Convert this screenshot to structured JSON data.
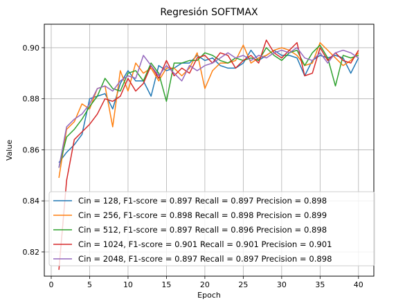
{
  "chart_data": {
    "type": "line",
    "title": "Regresión SOFTMAX",
    "xlabel": "Epoch",
    "ylabel": "Value",
    "xlim": [
      -0.9,
      42.0
    ],
    "ylim": [
      0.8105,
      0.9092
    ],
    "xticks": [
      0,
      5,
      10,
      15,
      20,
      25,
      30,
      35,
      40
    ],
    "yticks": [
      0.82,
      0.84,
      0.86,
      0.88,
      0.9
    ],
    "ytick_labels": [
      "0.82",
      "0.84",
      "0.86",
      "0.88",
      "0.90"
    ],
    "grid": true,
    "legend_position": "lower-left",
    "x": [
      1,
      2,
      3,
      4,
      5,
      6,
      7,
      8,
      9,
      10,
      11,
      12,
      13,
      14,
      15,
      16,
      17,
      18,
      19,
      20,
      21,
      22,
      23,
      24,
      25,
      26,
      27,
      28,
      29,
      30,
      31,
      32,
      33,
      34,
      35,
      36,
      37,
      38,
      39,
      40
    ],
    "series": [
      {
        "name": "Cin = 128, F1-score = 0.897 Recall = 0.897 Precision = 0.898",
        "color": "#1f77b4",
        "values": [
          0.855,
          0.859,
          0.862,
          0.866,
          0.88,
          0.881,
          0.882,
          0.876,
          0.886,
          0.891,
          0.887,
          0.887,
          0.881,
          0.893,
          0.891,
          0.892,
          0.894,
          0.894,
          0.897,
          0.895,
          0.896,
          0.893,
          0.892,
          0.892,
          0.894,
          0.899,
          0.895,
          0.897,
          0.899,
          0.897,
          0.897,
          0.896,
          0.889,
          0.895,
          0.897,
          0.896,
          0.897,
          0.896,
          0.89,
          0.896
        ]
      },
      {
        "name": "Cin = 256, F1-score = 0.898 Recall = 0.898 Precision = 0.899",
        "color": "#ff7f0e",
        "values": [
          0.849,
          0.868,
          0.871,
          0.878,
          0.876,
          0.884,
          0.885,
          0.869,
          0.891,
          0.883,
          0.894,
          0.89,
          0.892,
          0.887,
          0.892,
          0.892,
          0.889,
          0.892,
          0.898,
          0.884,
          0.891,
          0.894,
          0.894,
          0.895,
          0.901,
          0.894,
          0.896,
          0.897,
          0.899,
          0.9,
          0.899,
          0.897,
          0.893,
          0.894,
          0.902,
          0.899,
          0.896,
          0.893,
          0.895,
          0.898
        ]
      },
      {
        "name": "Cin = 512,  F1-score = 0.897 Recall = 0.896 Precision = 0.898",
        "color": "#2ca02c",
        "values": [
          0.853,
          0.865,
          0.868,
          0.872,
          0.877,
          0.881,
          0.888,
          0.884,
          0.883,
          0.89,
          0.891,
          0.887,
          0.894,
          0.89,
          0.879,
          0.894,
          0.894,
          0.895,
          0.895,
          0.898,
          0.897,
          0.895,
          0.894,
          0.896,
          0.895,
          0.896,
          0.895,
          0.9,
          0.897,
          0.895,
          0.898,
          0.899,
          0.893,
          0.898,
          0.901,
          0.896,
          0.885,
          0.897,
          0.896,
          0.897
        ]
      },
      {
        "name": "Cin = 1024,  F1-score = 0.901 Recall = 0.901 Precision = 0.901",
        "color": "#d62728",
        "values": [
          0.813,
          0.848,
          0.864,
          0.867,
          0.87,
          0.874,
          0.88,
          0.879,
          0.881,
          0.888,
          0.883,
          0.886,
          0.893,
          0.888,
          0.895,
          0.889,
          0.892,
          0.89,
          0.896,
          0.897,
          0.894,
          0.898,
          0.897,
          0.892,
          0.895,
          0.897,
          0.894,
          0.903,
          0.898,
          0.896,
          0.899,
          0.902,
          0.889,
          0.89,
          0.9,
          0.895,
          0.898,
          0.895,
          0.894,
          0.899
        ]
      },
      {
        "name": "Cin = 2048,  F1-score = 0.897 Recall = 0.897 Precision = 0.898",
        "color": "#9467bd",
        "values": [
          0.853,
          0.869,
          0.872,
          0.874,
          0.878,
          0.884,
          0.885,
          0.883,
          0.887,
          0.889,
          0.888,
          0.897,
          0.893,
          0.889,
          0.893,
          0.89,
          0.887,
          0.893,
          0.891,
          0.893,
          0.894,
          0.896,
          0.898,
          0.896,
          0.897,
          0.895,
          0.897,
          0.896,
          0.898,
          0.899,
          0.898,
          0.9,
          0.896,
          0.895,
          0.898,
          0.894,
          0.898,
          0.899,
          0.898,
          0.896
        ]
      }
    ]
  }
}
